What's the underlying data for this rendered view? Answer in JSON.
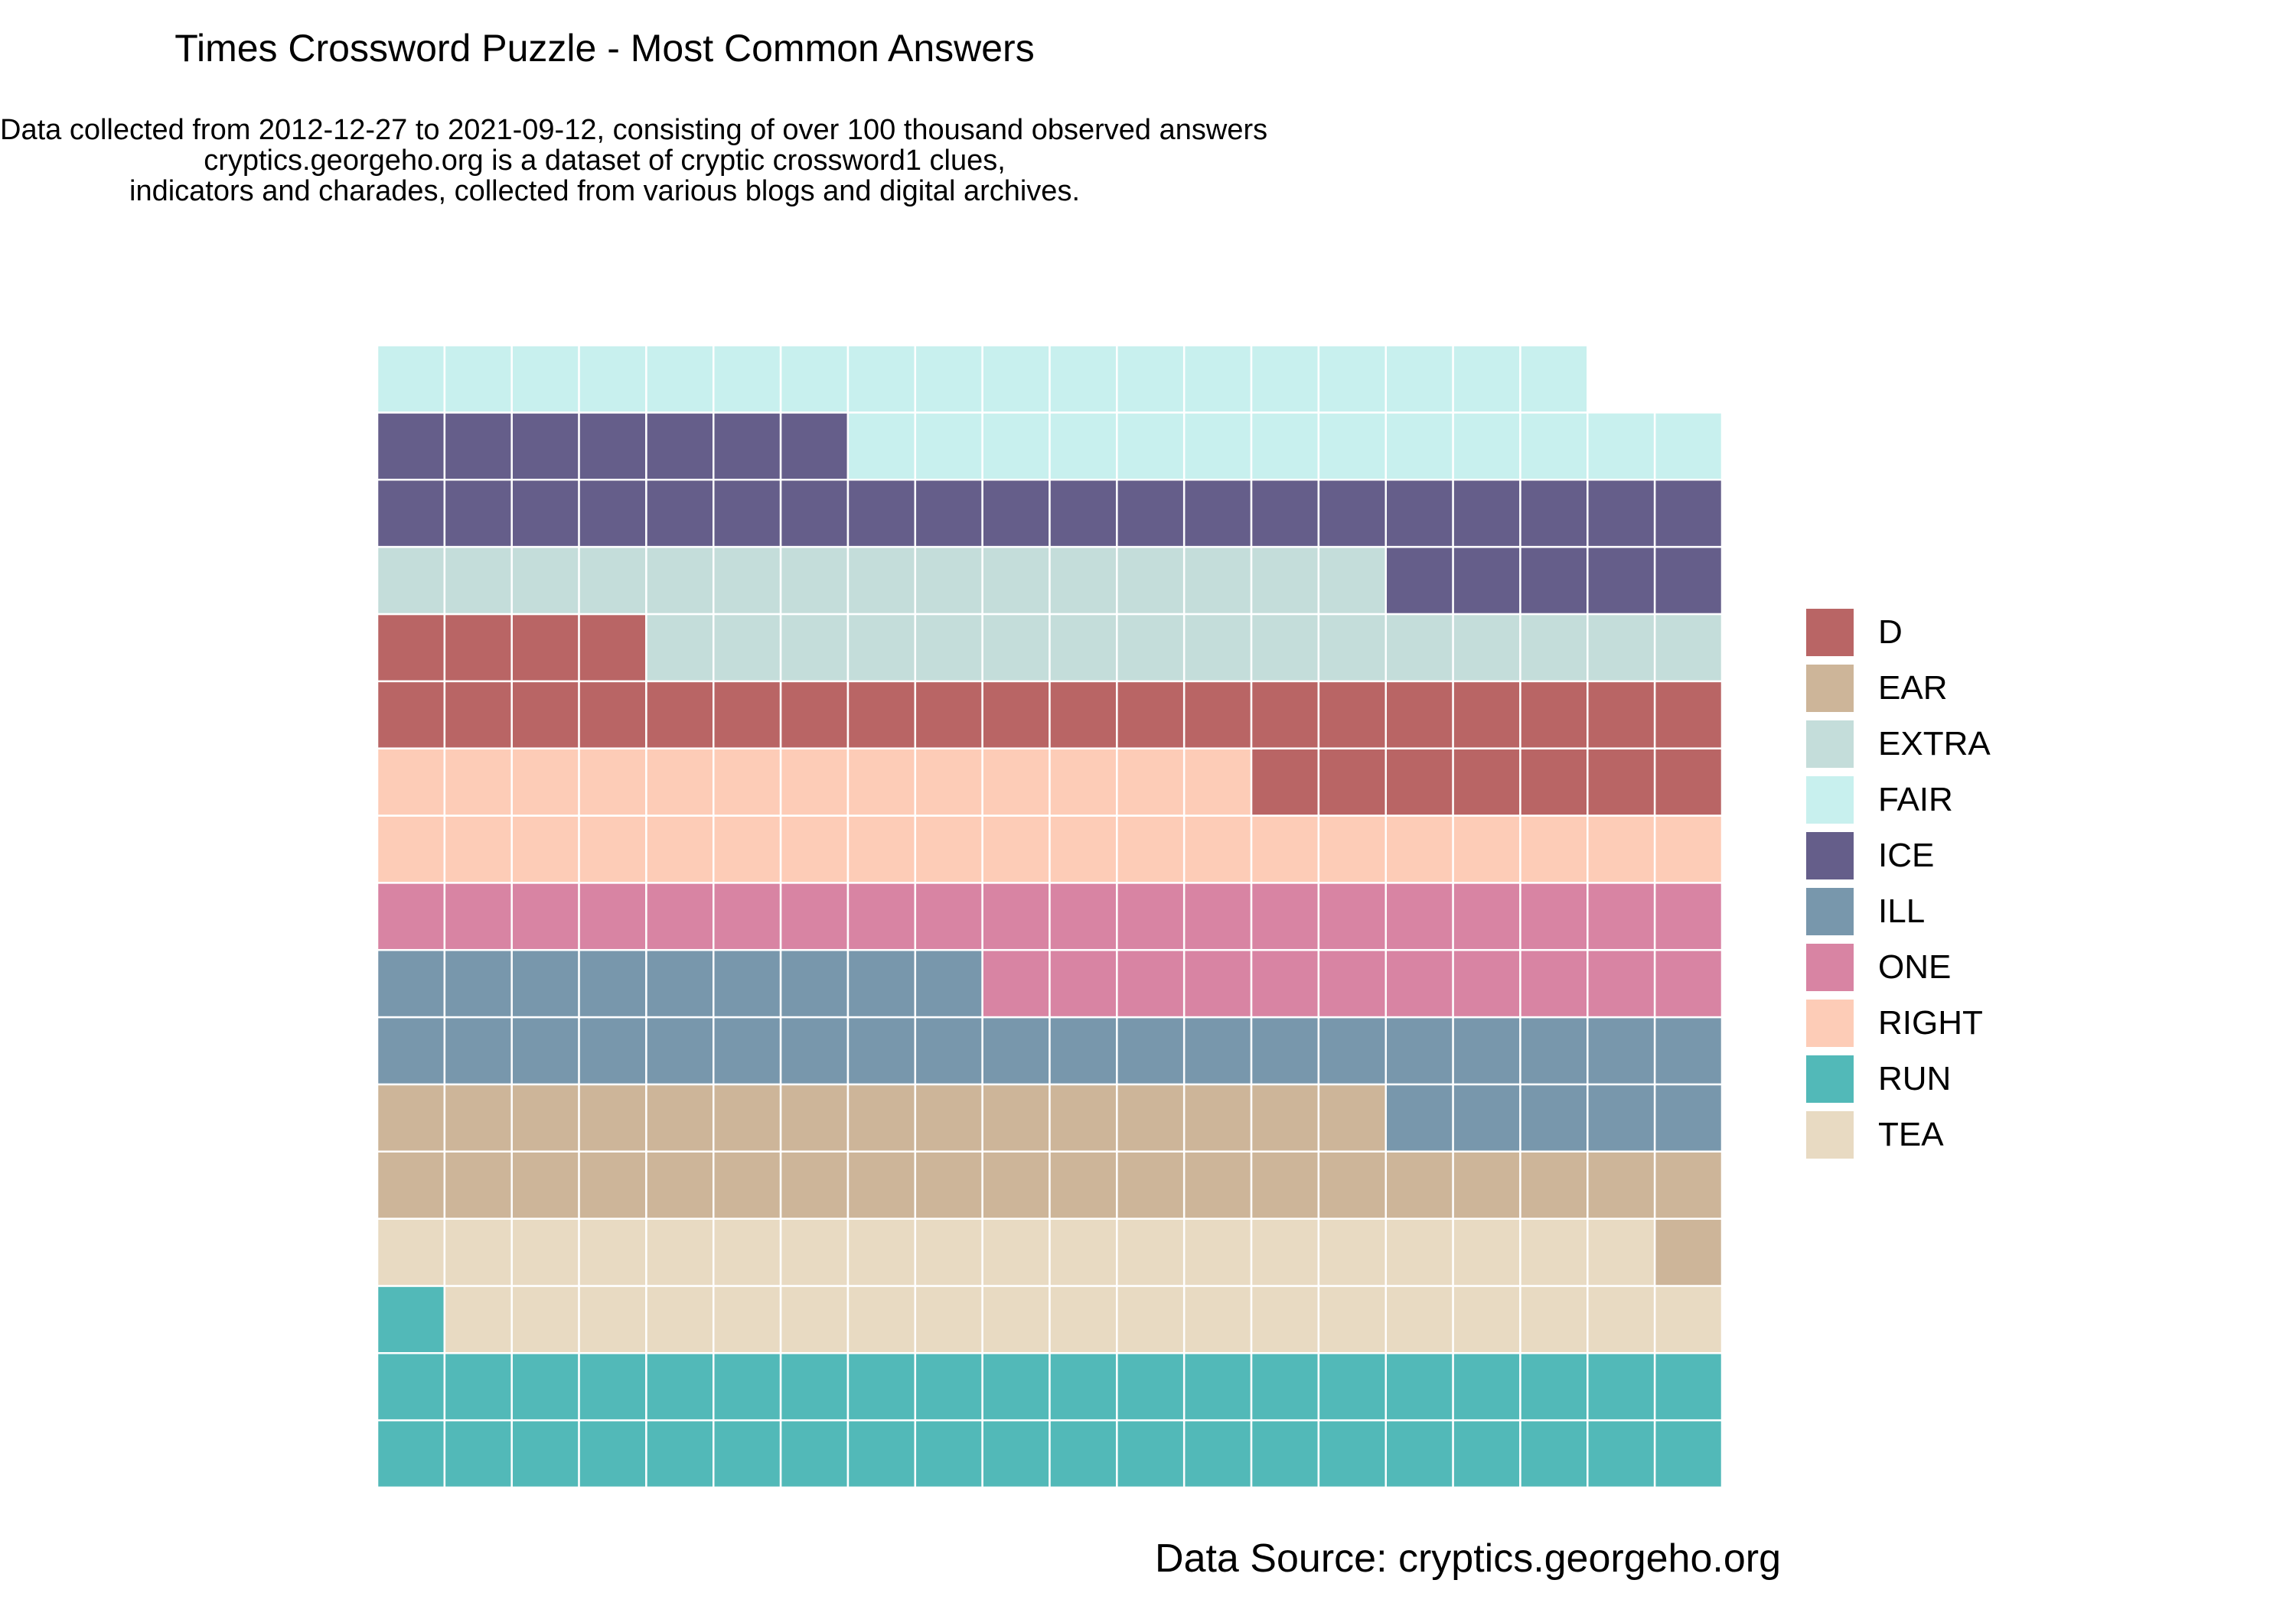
{
  "chart_data": {
    "type": "waffle",
    "title": "Times Crossword Puzzle - Most Common Answers",
    "subtitle": [
      "Data collected from 2012-12-27 to 2021-09-12, consisting of over 100 thousand observed answers",
      "cryptics.georgeho.org is a dataset of cryptic crossword1 clues,",
      "indicators and charades, collected from various blogs and digital archives."
    ],
    "caption": "Data Source: cryptics.georgeho.org",
    "grid_columns": 20,
    "fill_order": "bottom-to-top rows, left-to-right within each row",
    "categories": [
      "RUN",
      "TEA",
      "EAR",
      "ILL",
      "ONE",
      "RIGHT",
      "D",
      "EXTRA",
      "ICE",
      "FAIR"
    ],
    "values": [
      41,
      38,
      36,
      34,
      31,
      33,
      31,
      31,
      32,
      31
    ],
    "grid_on": false,
    "legend_position": "right",
    "legend": [
      {
        "label": "D",
        "color": "#B96565"
      },
      {
        "label": "EAR",
        "color": "#CDB599"
      },
      {
        "label": "EXTRA",
        "color": "#C4DDDA"
      },
      {
        "label": "FAIR",
        "color": "#C8F0EE"
      },
      {
        "label": "ICE",
        "color": "#655E8A"
      },
      {
        "label": "ILL",
        "color": "#7897AC"
      },
      {
        "label": "ONE",
        "color": "#D884A3"
      },
      {
        "label": "RIGHT",
        "color": "#FDCCB7"
      },
      {
        "label": "RUN",
        "color": "#52B9B8"
      },
      {
        "label": "TEA",
        "color": "#E8DAC2"
      }
    ]
  }
}
